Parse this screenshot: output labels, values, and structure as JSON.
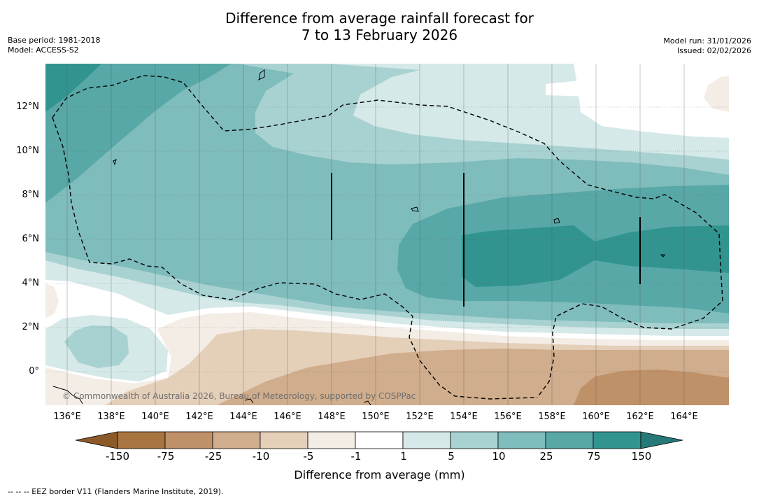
{
  "title_line1": "Difference from average rainfall forecast for",
  "title_line2": "7 to 13 February 2026",
  "base_period": "Base period: 1981-2018",
  "model": "Model: ACCESS-S2",
  "model_run": "Model run: 31/01/2026",
  "issued": "Issued: 02/02/2026",
  "credit": "© Commonwealth of Australia 2026, Bureau of Meteorology, supported by COSPPac",
  "footnote": "-- -- -- EEZ border V11 (Flanders Marine Institute, 2019).",
  "lat_labels": [
    "12°N",
    "10°N",
    "8°N",
    "6°N",
    "4°N",
    "2°N",
    "0°"
  ],
  "lon_labels": [
    "136°E",
    "138°E",
    "140°E",
    "142°E",
    "144°E",
    "146°E",
    "148°E",
    "150°E",
    "152°E",
    "154°E",
    "156°E",
    "158°E",
    "160°E",
    "162°E",
    "164°E"
  ],
  "colorbar": {
    "label": "Difference from average (mm)",
    "ticks": [
      "-150",
      "-75",
      "-25",
      "-10",
      "-5",
      "-1",
      "1",
      "5",
      "10",
      "25",
      "75",
      "150"
    ],
    "colors": [
      "#8c5a28",
      "#a87440",
      "#bf9168",
      "#d0ad8c",
      "#e4cfb9",
      "#f3ede6",
      "#ffffff",
      "#d5e9e8",
      "#a8d2d1",
      "#7fbcbc",
      "#58a8a7",
      "#31948f",
      "#257a77"
    ]
  }
}
